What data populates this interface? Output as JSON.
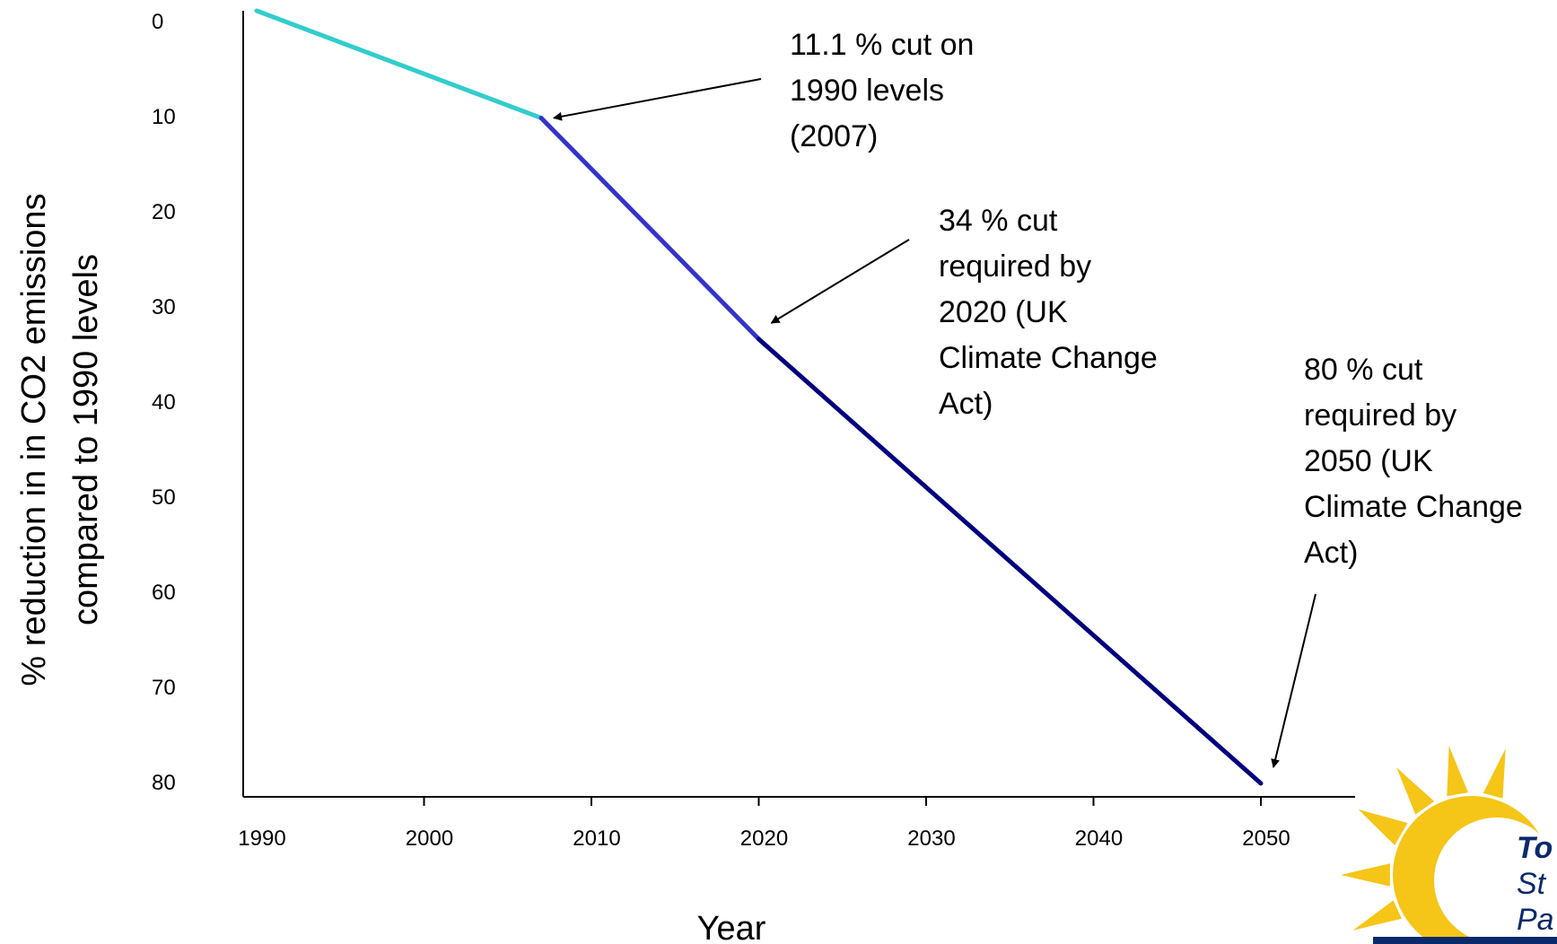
{
  "chart_data": {
    "type": "line",
    "title": "",
    "xlabel": "Year",
    "ylabel": "% reduction in in CO2 emissions compared to 1990 levels",
    "ylabel_lines": [
      "% reduction in in CO2 emissions",
      "compared to 1990 levels"
    ],
    "xlim": [
      1990,
      2055
    ],
    "ylim": [
      0,
      80
    ],
    "y_inverted": true,
    "x_ticks": [
      1990,
      2000,
      2010,
      2020,
      2030,
      2040,
      2050
    ],
    "y_ticks": [
      0,
      10,
      20,
      30,
      40,
      50,
      60,
      70,
      80
    ],
    "grid": false,
    "series": [
      {
        "color": "#33cccc",
        "x": [
          1990,
          2007
        ],
        "y": [
          0,
          11.1
        ]
      },
      {
        "color": "#3333cc",
        "x": [
          2007,
          2020
        ],
        "y": [
          11.1,
          34
        ]
      },
      {
        "color": "#000080",
        "x": [
          2020,
          2050
        ],
        "y": [
          34,
          80
        ]
      }
    ],
    "annotations": [
      {
        "lines": [
          "11.1 % cut on",
          "1990 levels",
          "(2007)"
        ],
        "target_x": 2007,
        "target_y": 11.1
      },
      {
        "lines": [
          "34 % cut",
          "required by",
          "2020 (UK",
          "Climate Change",
          "Act)"
        ],
        "target_x": 2020,
        "target_y": 34
      },
      {
        "lines": [
          "80 % cut",
          "required by",
          "2050 (UK",
          "Climate Change",
          "Act)"
        ],
        "target_x": 2050,
        "target_y": 80
      }
    ]
  },
  "logo": {
    "icon": "sun-icon",
    "colors": {
      "sun": "#f5c518",
      "text": "#0a2a6b",
      "bar": "#0a2a6b"
    },
    "text_lines": [
      "To",
      "St",
      "Pa"
    ]
  }
}
